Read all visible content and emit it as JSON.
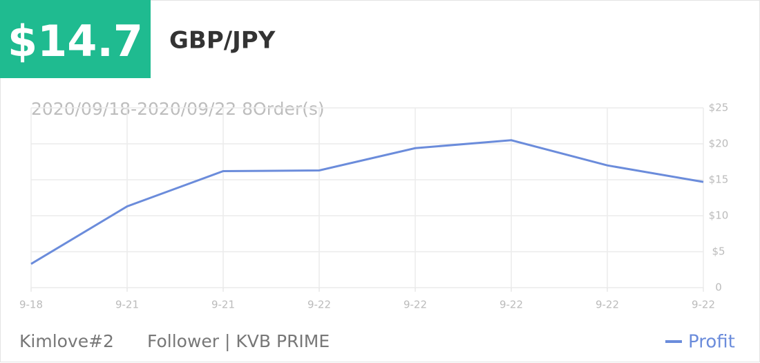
{
  "header": {
    "amount": "$14.7",
    "pair": "GBP/JPY"
  },
  "footer": {
    "user": "Kimlove#2",
    "account": "Follower | KVB PRIME"
  },
  "chart_data": {
    "type": "line",
    "subtitle": "2020/09/18-2020/09/22 8Order(s)",
    "categories": [
      "9-18",
      "9-21",
      "9-21",
      "9-22",
      "9-22",
      "9-22",
      "9-22",
      "9-22"
    ],
    "series": [
      {
        "name": "Profit",
        "color": "#6b8cdb",
        "values": [
          3.3,
          11.3,
          16.2,
          16.3,
          19.4,
          20.5,
          17.0,
          14.7
        ]
      }
    ],
    "ylim": [
      0,
      25
    ],
    "yticks": [
      0,
      {
        "value": 5,
        "label": "$5"
      },
      {
        "value": 10,
        "label": "$10"
      },
      {
        "value": 15,
        "label": "$15"
      },
      {
        "value": 20,
        "label": "$20"
      },
      {
        "value": 25,
        "label": "$25"
      }
    ],
    "grid": true
  }
}
